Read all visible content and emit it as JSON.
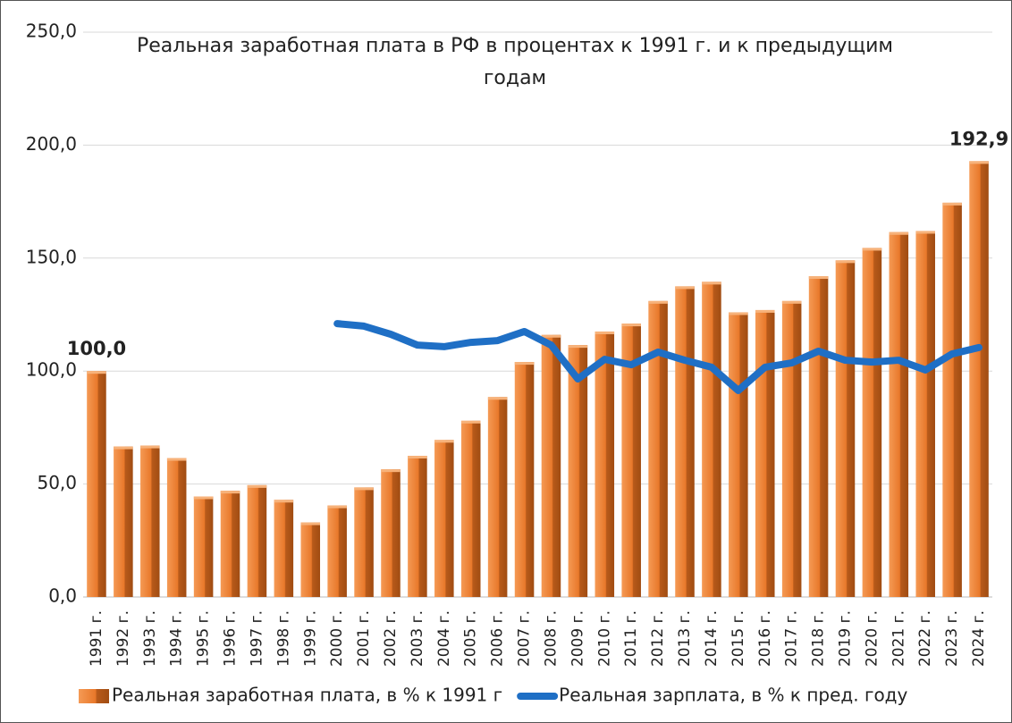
{
  "chart_data": {
    "type": "bar_line",
    "title": "Реальная заработная плата в РФ в процентах к 1991 г. и к предыдущим годам",
    "categories": [
      "1991 г.",
      "1992 г.",
      "1993 г.",
      "1994 г.",
      "1995 г.",
      "1996 г.",
      "1997 г.",
      "1998 г.",
      "1999 г.",
      "2000 г.",
      "2001 г.",
      "2002 г.",
      "2003 г.",
      "2004 г.",
      "2005 г.",
      "2006 г.",
      "2007 г.",
      "2008 г.",
      "2009 г.",
      "2010 г.",
      "2011 г.",
      "2012 г.",
      "2013 г.",
      "2014 г.",
      "2015 г.",
      "2016 г.",
      "2017 г.",
      "2018 г.",
      "2019 г.",
      "2020 г.",
      "2021 г.",
      "2022 г.",
      "2023 г.",
      "2024 г."
    ],
    "series": [
      {
        "name": "Реальная заработная плата, в % к 1991 г",
        "type": "bar",
        "color": "#e8782a",
        "values": [
          100,
          66.6,
          67,
          61.5,
          44.5,
          47,
          49.5,
          43,
          33,
          40.5,
          48.5,
          56.5,
          62.5,
          69.5,
          78,
          88.5,
          104,
          116,
          111.5,
          117.5,
          121,
          131,
          137.5,
          139.5,
          126,
          127,
          131,
          142,
          149,
          154.5,
          161.5,
          162,
          174.5,
          192.9
        ],
        "value_labels": [
          "100,0",
          null,
          null,
          null,
          null,
          null,
          null,
          null,
          null,
          null,
          null,
          null,
          null,
          null,
          null,
          null,
          null,
          null,
          null,
          null,
          null,
          null,
          null,
          null,
          null,
          null,
          null,
          null,
          null,
          null,
          null,
          null,
          null,
          "192,9"
        ]
      },
      {
        "name": "Реальная зарплата, в % к пред. году",
        "type": "line",
        "color": "#1f6fc5",
        "values": [
          null,
          null,
          null,
          null,
          null,
          null,
          null,
          null,
          null,
          121,
          119.9,
          116.3,
          111.5,
          110.8,
          112.7,
          113.5,
          117.5,
          111.5,
          96.5,
          105.2,
          102.8,
          108.4,
          104.8,
          101.7,
          91.4,
          101.7,
          103.6,
          108.8,
          104.8,
          104,
          104.8,
          100.5,
          107.6,
          110.4
        ]
      }
    ],
    "ylim": [
      0,
      250
    ],
    "yticks": [
      {
        "value": 0,
        "label": "0,0"
      },
      {
        "value": 50,
        "label": "50,0"
      },
      {
        "value": 100,
        "label": "100,0"
      },
      {
        "value": 150,
        "label": "150,0"
      },
      {
        "value": 200,
        "label": "200,0"
      },
      {
        "value": 250,
        "label": "250,0"
      }
    ],
    "grid": true,
    "legend": "bottom"
  }
}
